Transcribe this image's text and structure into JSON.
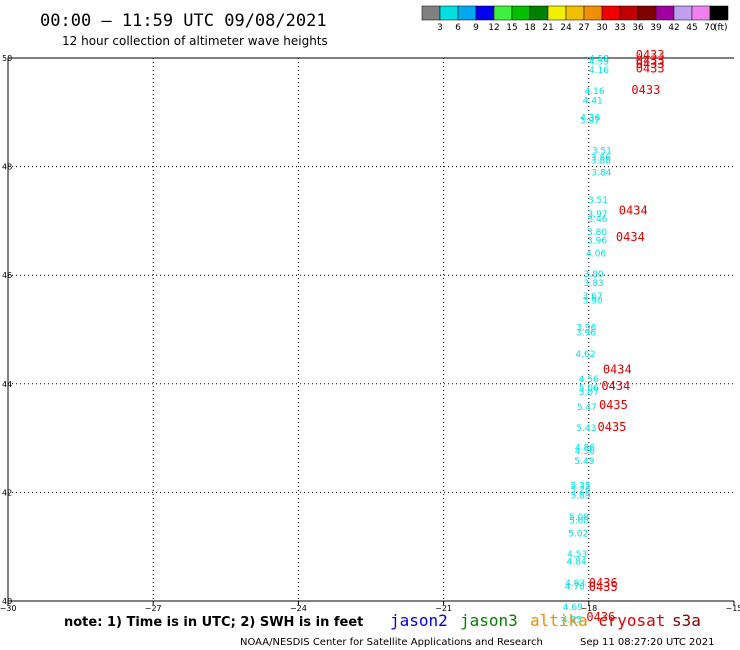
{
  "header": {
    "title": "00:00 – 11:59 UTC 09/08/2021",
    "subtitle": "12 hour collection of altimeter wave heights"
  },
  "colorbar": {
    "colors": [
      "#808080",
      "#00e0e0",
      "#00a8f0",
      "#0000f0",
      "#40f040",
      "#00c000",
      "#008000",
      "#f0f000",
      "#f0c000",
      "#f09000",
      "#f00000",
      "#c00000",
      "#800000",
      "#a000a0",
      "#c0a0f0",
      "#f080f0",
      "#000000"
    ],
    "labels": [
      "3",
      "6",
      "9",
      "12",
      "15",
      "18",
      "21",
      "24",
      "27",
      "30",
      "33",
      "36",
      "39",
      "42",
      "45",
      "70"
    ],
    "unit": "(ft)"
  },
  "footer": {
    "note": "note: 1) Time is in UTC; 2) SWH is in feet",
    "credit": "NOAA/NESDIS Center for Satellite Applications and Research",
    "timestamp": "Sep 11 08:27:20 UTC 2021",
    "legend": [
      {
        "name": "jason2",
        "color": "#0000e0"
      },
      {
        "name": "jason3",
        "color": "#008000"
      },
      {
        "name": "altika",
        "color": "#f08c00"
      },
      {
        "name": "cryosat",
        "color": "#e00000"
      },
      {
        "name": "s3a",
        "color": "#800000"
      }
    ]
  },
  "chart_data": {
    "type": "scatter",
    "xlim": [
      -30,
      -15
    ],
    "ylim": [
      40,
      50
    ],
    "x_ticks": [
      -30,
      -27,
      -24,
      -21,
      -18,
      -15
    ],
    "x_tick_labels": [
      "−30",
      "−27",
      "−24",
      "−21",
      "−18",
      "−15"
    ],
    "y_ticks": [
      40,
      42,
      44,
      46,
      48,
      50
    ],
    "y_tick_labels": [
      "40",
      "42",
      "44",
      "46",
      "48",
      "50"
    ],
    "grid": true,
    "wave_heights": [
      {
        "lon": -17.79,
        "lat": 49.94,
        "swh": "4.58"
      },
      {
        "lon": -17.79,
        "lat": 49.88,
        "swh": "4.59"
      },
      {
        "lon": -17.79,
        "lat": 49.72,
        "swh": "4.16"
      },
      {
        "lon": -17.88,
        "lat": 49.34,
        "swh": "4.16"
      },
      {
        "lon": -17.92,
        "lat": 49.16,
        "swh": "4.41"
      },
      {
        "lon": -17.97,
        "lat": 48.85,
        "swh": "4.36"
      },
      {
        "lon": -17.98,
        "lat": 48.79,
        "swh": "3.97"
      },
      {
        "lon": -17.73,
        "lat": 48.24,
        "swh": "3.51"
      },
      {
        "lon": -17.75,
        "lat": 48.11,
        "swh": "3.86"
      },
      {
        "lon": -17.75,
        "lat": 48.06,
        "swh": "3.88"
      },
      {
        "lon": -17.74,
        "lat": 47.84,
        "swh": "3.84"
      },
      {
        "lon": -17.81,
        "lat": 47.33,
        "swh": "3.51"
      },
      {
        "lon": -17.82,
        "lat": 47.07,
        "swh": "3.97"
      },
      {
        "lon": -17.82,
        "lat": 46.98,
        "swh": "3.46"
      },
      {
        "lon": -17.83,
        "lat": 46.74,
        "swh": "3.80"
      },
      {
        "lon": -17.83,
        "lat": 46.58,
        "swh": "3.96"
      },
      {
        "lon": -17.85,
        "lat": 46.34,
        "swh": "4.06"
      },
      {
        "lon": -17.9,
        "lat": 45.97,
        "swh": "3.80"
      },
      {
        "lon": -17.9,
        "lat": 45.8,
        "swh": "3.83"
      },
      {
        "lon": -17.92,
        "lat": 45.56,
        "swh": "3.67"
      },
      {
        "lon": -17.92,
        "lat": 45.48,
        "swh": "3.90"
      },
      {
        "lon": -18.05,
        "lat": 44.98,
        "swh": "3.96"
      },
      {
        "lon": -18.06,
        "lat": 44.89,
        "swh": "3.96"
      },
      {
        "lon": -18.07,
        "lat": 44.49,
        "swh": "4.62"
      },
      {
        "lon": -18.0,
        "lat": 44.03,
        "swh": "4.56"
      },
      {
        "lon": -18.0,
        "lat": 43.87,
        "swh": "5.06"
      },
      {
        "lon": -18.0,
        "lat": 43.79,
        "swh": "5.07"
      },
      {
        "lon": -18.04,
        "lat": 43.52,
        "swh": "5.47"
      },
      {
        "lon": -18.05,
        "lat": 43.13,
        "swh": "5.43"
      },
      {
        "lon": -18.08,
        "lat": 42.77,
        "swh": "4.86"
      },
      {
        "lon": -18.08,
        "lat": 42.71,
        "swh": "4.56"
      },
      {
        "lon": -18.09,
        "lat": 42.52,
        "swh": "5.49"
      },
      {
        "lon": -18.17,
        "lat": 42.07,
        "swh": "5.35"
      },
      {
        "lon": -18.17,
        "lat": 42.0,
        "swh": "5.26"
      },
      {
        "lon": -18.17,
        "lat": 41.89,
        "swh": "5.89"
      },
      {
        "lon": -18.2,
        "lat": 41.49,
        "swh": "5.08"
      },
      {
        "lon": -18.2,
        "lat": 41.43,
        "swh": "5.08"
      },
      {
        "lon": -18.22,
        "lat": 41.19,
        "swh": "5.02"
      },
      {
        "lon": -18.24,
        "lat": 40.81,
        "swh": "4.53"
      },
      {
        "lon": -18.25,
        "lat": 40.67,
        "swh": "4.84"
      },
      {
        "lon": -18.28,
        "lat": 40.28,
        "swh": "4.83"
      },
      {
        "lon": -18.29,
        "lat": 40.21,
        "swh": "4.70"
      },
      {
        "lon": -18.33,
        "lat": 39.83,
        "swh": "4.69"
      },
      {
        "lon": -18.35,
        "lat": 39.6,
        "swh": "4.85"
      }
    ],
    "pass_labels": [
      {
        "lon": -17.03,
        "lat": 49.98,
        "text": "0433"
      },
      {
        "lon": -17.03,
        "lat": 49.88,
        "text": "0433"
      },
      {
        "lon": -17.03,
        "lat": 49.82,
        "text": "0433"
      },
      {
        "lon": -17.03,
        "lat": 49.73,
        "text": "0433"
      },
      {
        "lon": -17.12,
        "lat": 49.34,
        "text": "0433"
      },
      {
        "lon": -17.38,
        "lat": 47.12,
        "text": "0434"
      },
      {
        "lon": -17.44,
        "lat": 46.63,
        "text": "0434"
      },
      {
        "lon": -17.71,
        "lat": 44.19,
        "text": "0434"
      },
      {
        "lon": -17.74,
        "lat": 43.89,
        "text": "0434"
      },
      {
        "lon": -17.79,
        "lat": 43.54,
        "text": "0435"
      },
      {
        "lon": -17.82,
        "lat": 43.13,
        "text": "0435"
      },
      {
        "lon": -18.0,
        "lat": 40.26,
        "text": "0436"
      },
      {
        "lon": -18.0,
        "lat": 40.18,
        "text": "0435"
      },
      {
        "lon": -18.05,
        "lat": 39.63,
        "text": "0436"
      }
    ]
  }
}
